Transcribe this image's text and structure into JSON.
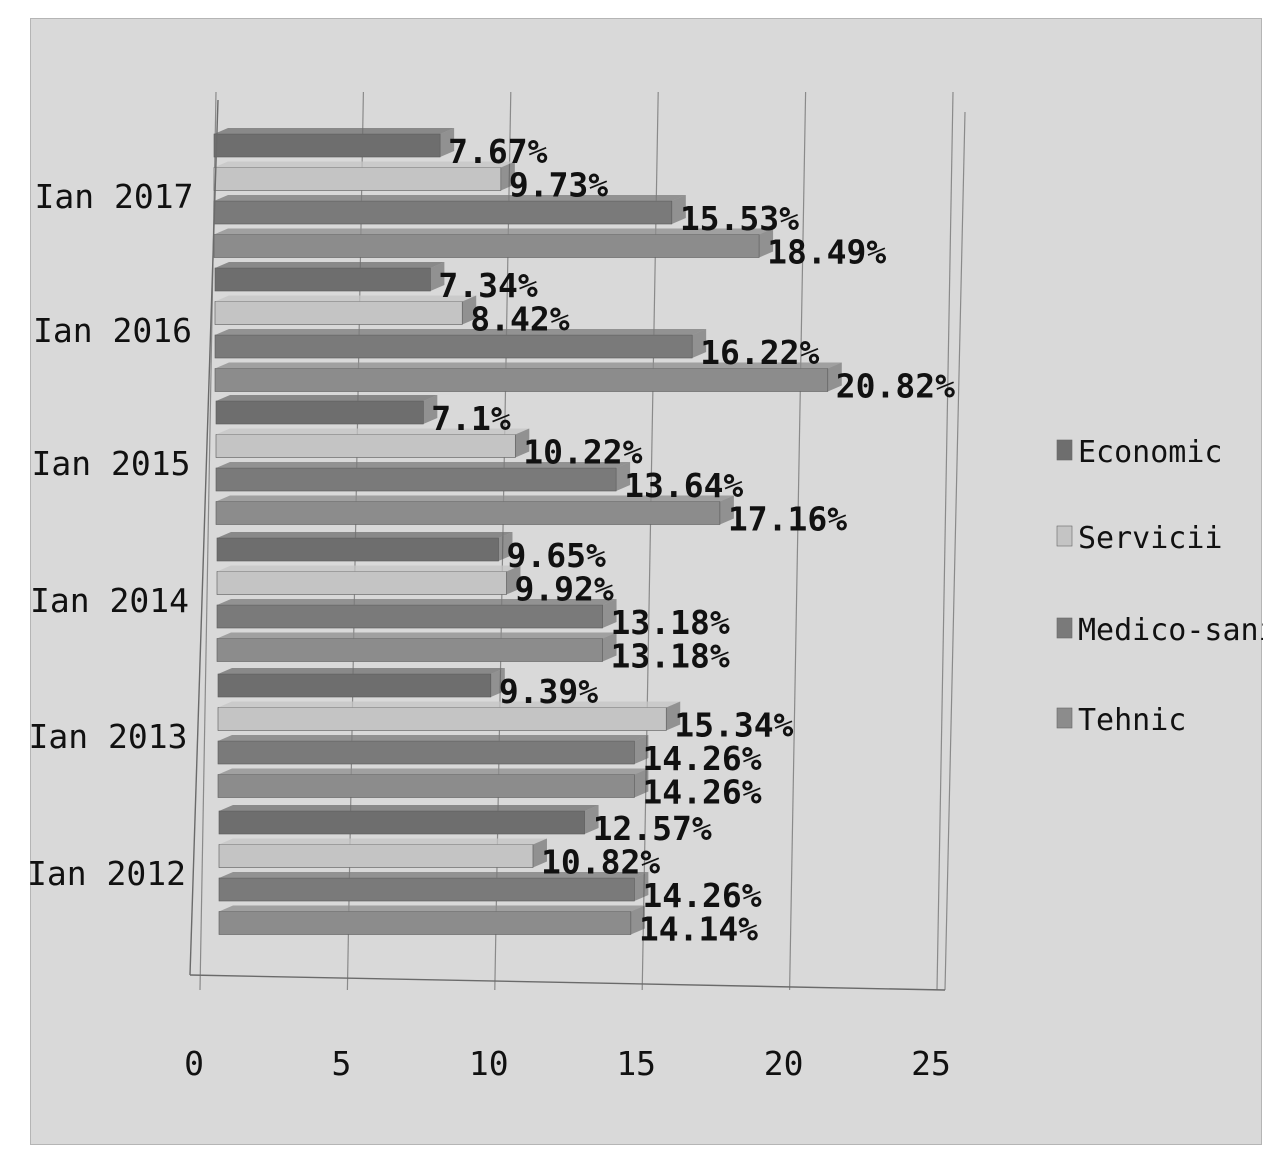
{
  "chart_data": {
    "type": "bar",
    "orientation": "horizontal",
    "categories": [
      "Ian 2012",
      "Ian 2013",
      "Ian 2014",
      "Ian 2015",
      "Ian 2016",
      "Ian 2017"
    ],
    "series": [
      {
        "name": "Economic",
        "values": [
          12.57,
          9.39,
          9.65,
          7.1,
          7.34,
          7.67
        ],
        "labels": [
          "12.57%",
          "9.39%",
          "9.65%",
          "7.1%",
          "7.34%",
          "7.67%"
        ],
        "color": "#6e6e6e"
      },
      {
        "name": "Servicii",
        "values": [
          10.82,
          15.34,
          9.92,
          10.22,
          8.42,
          9.73
        ],
        "labels": [
          "10.82%",
          "15.34%",
          "9.92%",
          "10.22%",
          "8.42%",
          "9.73%"
        ],
        "color": "#c4c4c4"
      },
      {
        "name": "Medico-sanitar",
        "values": [
          14.26,
          14.26,
          13.18,
          13.64,
          16.22,
          15.53
        ],
        "labels": [
          "14.26%",
          "14.26%",
          "13.18%",
          "13.64%",
          "16.22%",
          "15.53%"
        ],
        "color": "#7a7a7a"
      },
      {
        "name": "Tehnic",
        "values": [
          14.14,
          14.26,
          13.18,
          17.16,
          20.82,
          18.49
        ],
        "labels": [
          "14.14%",
          "14.26%",
          "13.18%",
          "17.16%",
          "20.82%",
          "18.49%"
        ],
        "color": "#8c8c8c"
      }
    ],
    "x_ticks": [
      "0",
      "5",
      "10",
      "15",
      "20",
      "25"
    ],
    "xlim": [
      0,
      25
    ],
    "title": "",
    "xlabel": "",
    "ylabel": "",
    "grid": true,
    "legend_position": "right"
  }
}
